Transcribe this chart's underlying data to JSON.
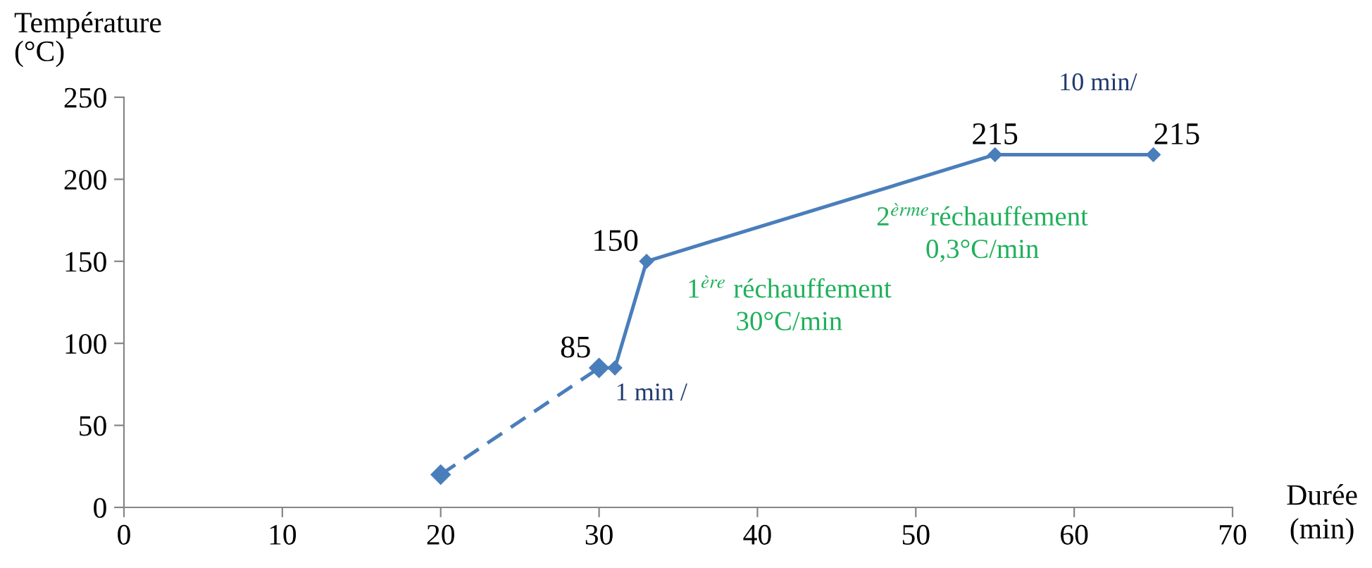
{
  "chart_data": {
    "type": "line",
    "xlabel": "Durée\n(min)",
    "ylabel": "Température\n(°C)",
    "xlim": [
      0,
      70
    ],
    "xticks": [
      0,
      10,
      20,
      30,
      40,
      50,
      60,
      70
    ],
    "ylim": [
      0,
      250
    ],
    "yticks": [
      0,
      50,
      100,
      150,
      200,
      250
    ],
    "grid": false,
    "legend": false,
    "marker": "diamond",
    "series": [
      {
        "color": "#4a7ebb",
        "x": [
          20,
          30
        ],
        "values": [
          20,
          85
        ],
        "line_style": "dashed"
      },
      {
        "color": "#4a7ebb",
        "x": [
          30,
          31,
          33,
          55,
          65
        ],
        "values": [
          85,
          85,
          150,
          215,
          215
        ],
        "line_style": "solid",
        "value_labels": [
          "85",
          null,
          "150",
          "215",
          "215"
        ]
      }
    ],
    "annotations": [
      "1 min /",
      "10 min/",
      "1$^{ère}$ réchauffement\n30°C/min",
      "2$^{èrme}$réchauffement\n0,3°C/min"
    ]
  }
}
